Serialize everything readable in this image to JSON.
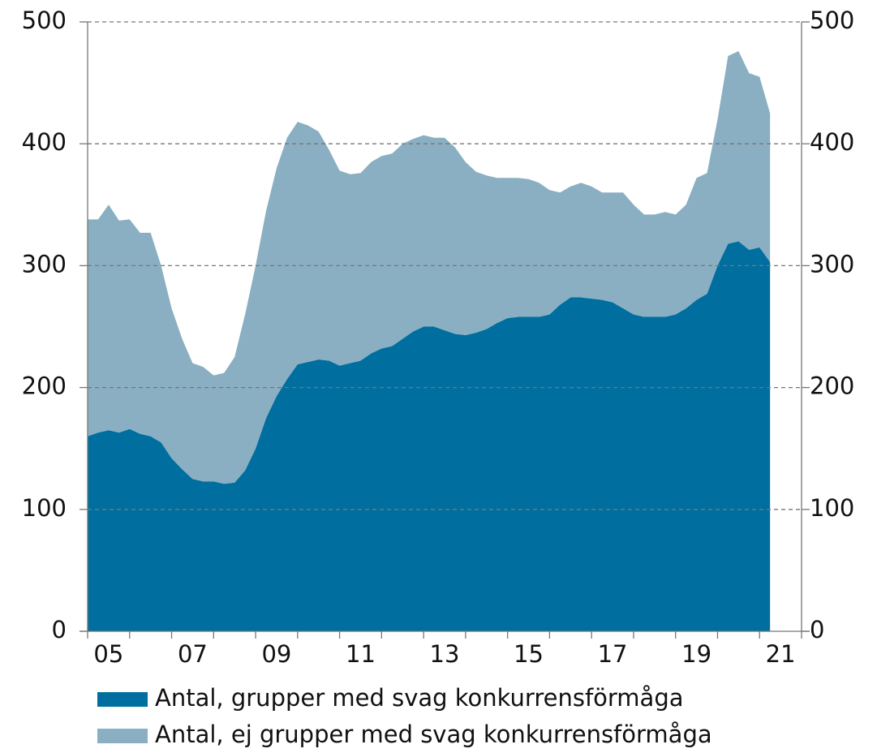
{
  "chart_data": {
    "type": "stacked_area",
    "x": [
      2005,
      2005.25,
      2005.5,
      2005.75,
      2006,
      2006.25,
      2006.5,
      2006.75,
      2007,
      2007.25,
      2007.5,
      2007.75,
      2008,
      2008.25,
      2008.5,
      2008.75,
      2009,
      2009.25,
      2009.5,
      2009.75,
      2010,
      2010.25,
      2010.5,
      2010.75,
      2011,
      2011.25,
      2011.5,
      2011.75,
      2012,
      2012.25,
      2012.5,
      2012.75,
      2013,
      2013.25,
      2013.5,
      2013.75,
      2014,
      2014.25,
      2014.5,
      2014.75,
      2015,
      2015.25,
      2015.5,
      2015.75,
      2016,
      2016.25,
      2016.5,
      2016.75,
      2017,
      2017.25,
      2017.5,
      2017.75,
      2018,
      2018.25,
      2018.5,
      2018.75,
      2019,
      2019.25,
      2019.5,
      2019.75,
      2020,
      2020.25,
      2020.5,
      2020.75,
      2021,
      2021.25
    ],
    "series": [
      {
        "name": "Antal, grupper med svag konkurrensförmåga",
        "color": "#006f9f",
        "values": [
          160,
          163,
          165,
          163,
          166,
          162,
          160,
          155,
          142,
          133,
          125,
          123,
          123,
          121,
          122,
          132,
          150,
          175,
          193,
          207,
          219,
          221,
          223,
          222,
          218,
          220,
          222,
          228,
          232,
          234,
          240,
          246,
          250,
          250,
          247,
          244,
          243,
          245,
          248,
          253,
          257,
          258,
          258,
          258,
          260,
          268,
          274,
          274,
          273,
          272,
          270,
          265,
          260,
          258,
          258,
          258,
          260,
          265,
          272,
          277,
          300,
          318,
          320,
          313,
          315,
          303
        ]
      },
      {
        "name": "Antal, ej grupper med svag konkurrensförmåga",
        "color": "#8aafc2",
        "values": [
          178,
          175,
          185,
          174,
          172,
          165,
          167,
          145,
          123,
          107,
          95,
          94,
          87,
          91,
          103,
          128,
          150,
          170,
          187,
          198,
          199,
          194,
          187,
          173,
          160,
          155,
          154,
          157,
          158,
          158,
          160,
          158,
          157,
          155,
          158,
          153,
          142,
          132,
          126,
          119,
          115,
          114,
          113,
          110,
          102,
          92,
          91,
          94,
          92,
          88,
          90,
          95,
          90,
          84,
          84,
          86,
          82,
          85,
          100,
          99,
          120,
          154,
          156,
          145,
          140,
          122
        ]
      }
    ],
    "xlim": [
      2005,
      2022
    ],
    "xtick_marks": [
      2005,
      2006,
      2007,
      2008,
      2009,
      2010,
      2011,
      2012,
      2013,
      2014,
      2015,
      2016,
      2017,
      2018,
      2019,
      2020,
      2021,
      2022
    ],
    "xticks": [
      {
        "value": 2005.5,
        "label": "05"
      },
      {
        "value": 2007.5,
        "label": "07"
      },
      {
        "value": 2009.5,
        "label": "09"
      },
      {
        "value": 2011.5,
        "label": "11"
      },
      {
        "value": 2013.5,
        "label": "13"
      },
      {
        "value": 2015.5,
        "label": "15"
      },
      {
        "value": 2017.5,
        "label": "17"
      },
      {
        "value": 2019.5,
        "label": "19"
      },
      {
        "value": 2021.5,
        "label": "21"
      }
    ],
    "ylim": [
      0,
      500
    ],
    "yticks": [
      0,
      100,
      200,
      300,
      400,
      500
    ],
    "grid": true
  }
}
